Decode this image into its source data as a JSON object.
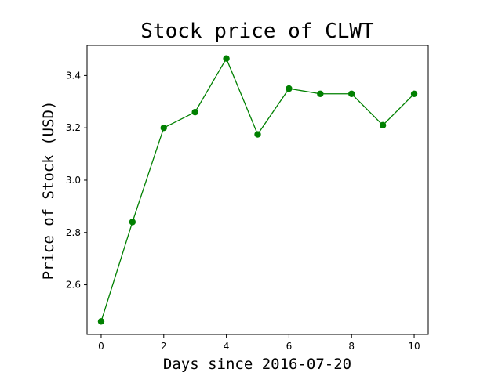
{
  "chart_data": {
    "type": "line",
    "title": "Stock price of CLWT",
    "xlabel": "Days since 2016-07-20",
    "ylabel": "Price of Stock (USD)",
    "x": [
      0,
      1,
      2,
      3,
      4,
      5,
      6,
      7,
      8,
      9,
      10
    ],
    "series": [
      {
        "values": [
          2.46,
          2.84,
          3.2,
          3.26,
          3.465,
          3.175,
          3.35,
          3.33,
          3.33,
          3.21,
          3.33
        ],
        "color": "#008000",
        "marker": "circle"
      }
    ],
    "xlim": [
      -0.45,
      10.45
    ],
    "ylim": [
      2.41,
      3.515
    ],
    "xticks": [
      0,
      2,
      4,
      6,
      8,
      10
    ],
    "xtick_labels": [
      "0",
      "2",
      "4",
      "6",
      "8",
      "10"
    ],
    "yticks": [
      2.6,
      2.8,
      3.0,
      3.2,
      3.4
    ],
    "ytick_labels": [
      "2.6",
      "2.8",
      "3.0",
      "3.2",
      "3.4"
    ],
    "grid": false,
    "legend": "none"
  }
}
